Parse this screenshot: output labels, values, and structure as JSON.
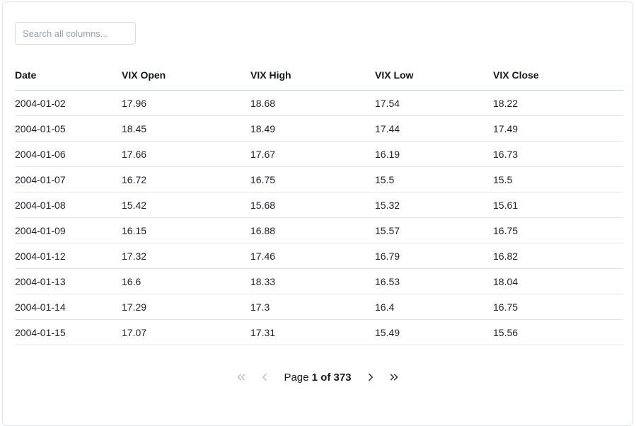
{
  "search": {
    "placeholder": "Search all columns..."
  },
  "table": {
    "columns": [
      "Date",
      "VIX Open",
      "VIX High",
      "VIX Low",
      "VIX Close"
    ],
    "rows": [
      [
        "2004-01-02",
        "17.96",
        "18.68",
        "17.54",
        "18.22"
      ],
      [
        "2004-01-05",
        "18.45",
        "18.49",
        "17.44",
        "17.49"
      ],
      [
        "2004-01-06",
        "17.66",
        "17.67",
        "16.19",
        "16.73"
      ],
      [
        "2004-01-07",
        "16.72",
        "16.75",
        "15.5",
        "15.5"
      ],
      [
        "2004-01-08",
        "15.42",
        "15.68",
        "15.32",
        "15.61"
      ],
      [
        "2004-01-09",
        "16.15",
        "16.88",
        "15.57",
        "16.75"
      ],
      [
        "2004-01-12",
        "17.32",
        "17.46",
        "16.79",
        "16.82"
      ],
      [
        "2004-01-13",
        "16.6",
        "18.33",
        "16.53",
        "18.04"
      ],
      [
        "2004-01-14",
        "17.29",
        "17.3",
        "16.4",
        "16.75"
      ],
      [
        "2004-01-15",
        "17.07",
        "17.31",
        "15.49",
        "15.56"
      ]
    ]
  },
  "pagination": {
    "page_label": "Page ",
    "page_value": "1 of 373",
    "first_icon": "chevrons-left-icon",
    "prev_icon": "chevron-left-icon",
    "next_icon": "chevron-right-icon",
    "last_icon": "chevrons-right-icon"
  },
  "colors": {
    "card_border": "#e0e3e8",
    "header_underline": "#c3cddc",
    "row_divider": "#e1e7f0",
    "icon_enabled": "#2b2e31",
    "icon_disabled": "#b9bdc2",
    "placeholder_text": "#98a1ae"
  }
}
